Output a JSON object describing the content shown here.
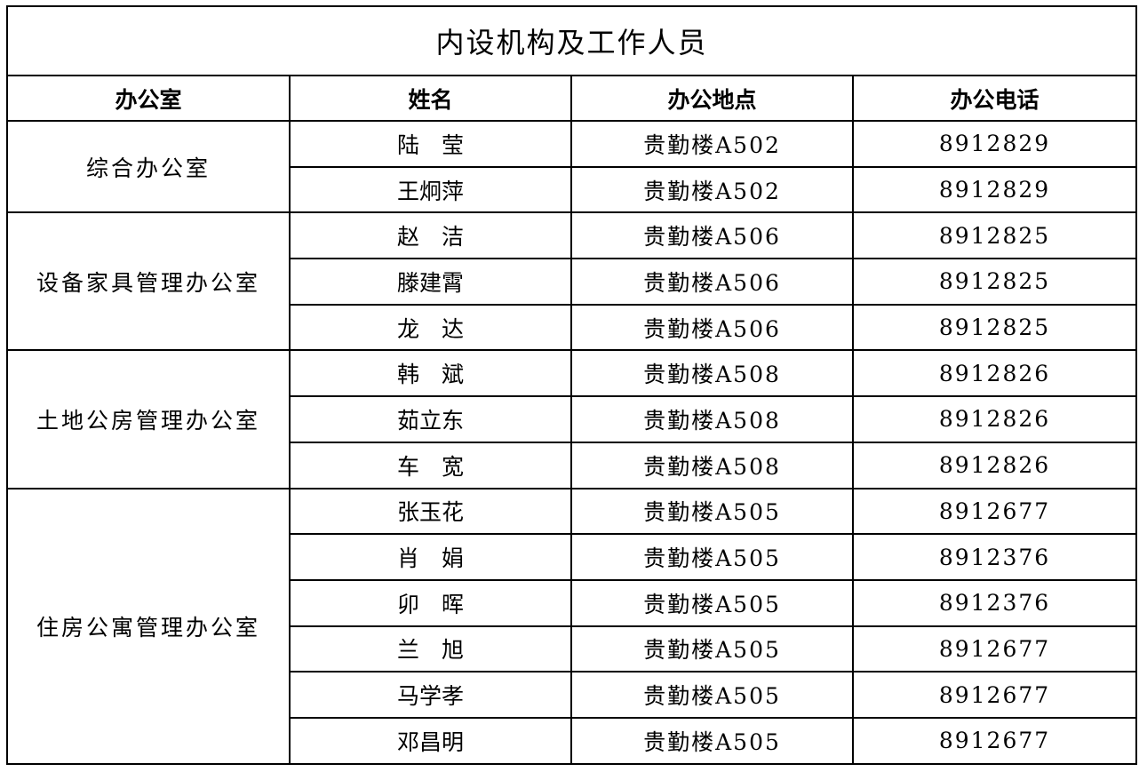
{
  "title": "内设机构及工作人员",
  "headers": [
    "办公室",
    "姓名",
    "办公地点",
    "办公电话"
  ],
  "departments": [
    {
      "name": "综合办公室",
      "staff": [
        {
          "name": "陆　莹",
          "location": "贵勤楼A502",
          "phone": "8912829"
        },
        {
          "name": "王炯萍",
          "location": "贵勤楼A502",
          "phone": "8912829"
        }
      ]
    },
    {
      "name": "设备家具管理办公室",
      "staff": [
        {
          "name": "赵　洁",
          "location": "贵勤楼A506",
          "phone": "8912825"
        },
        {
          "name": "滕建霄",
          "location": "贵勤楼A506",
          "phone": "8912825"
        },
        {
          "name": "龙　达",
          "location": "贵勤楼A506",
          "phone": "8912825"
        }
      ]
    },
    {
      "name": "土地公房管理办公室",
      "staff": [
        {
          "name": "韩　斌",
          "location": "贵勤楼A508",
          "phone": "8912826"
        },
        {
          "name": "茹立东",
          "location": "贵勤楼A508",
          "phone": "8912826"
        },
        {
          "name": "车　宽",
          "location": "贵勤楼A508",
          "phone": "8912826"
        }
      ]
    },
    {
      "name": "住房公寓管理办公室",
      "staff": [
        {
          "name": "张玉花",
          "location": "贵勤楼A505",
          "phone": "8912677"
        },
        {
          "name": "肖　娟",
          "location": "贵勤楼A505",
          "phone": "8912376"
        },
        {
          "name": "卯　晖",
          "location": "贵勤楼A505",
          "phone": "8912376"
        },
        {
          "name": "兰　旭",
          "location": "贵勤楼A505",
          "phone": "8912677"
        },
        {
          "name": "马学孝",
          "location": "贵勤楼A505",
          "phone": "8912677"
        },
        {
          "name": "邓昌明",
          "location": "贵勤楼A505",
          "phone": "8912677"
        }
      ]
    }
  ]
}
